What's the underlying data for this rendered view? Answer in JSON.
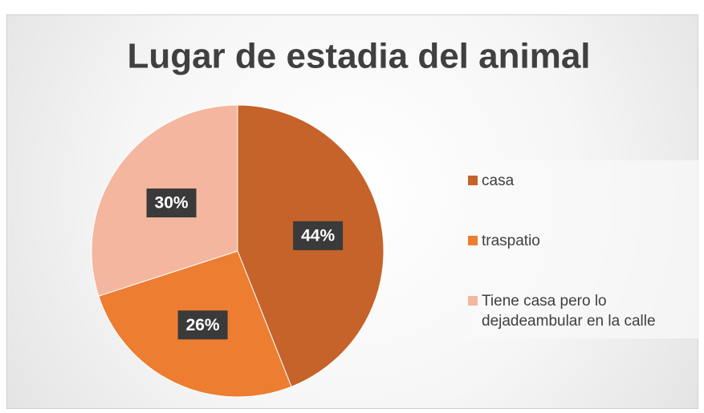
{
  "chart_data": {
    "type": "pie",
    "title": "Lugar de estadia del animal",
    "categories": [
      "casa",
      "traspatio",
      "Tiene casa pero lo dejadeambular en la calle"
    ],
    "values": [
      44,
      26,
      30
    ],
    "value_labels": [
      "44%",
      "26%",
      "30%"
    ],
    "colors": [
      "#c5632a",
      "#ed7d31",
      "#f4b69e"
    ],
    "legend": "right"
  }
}
